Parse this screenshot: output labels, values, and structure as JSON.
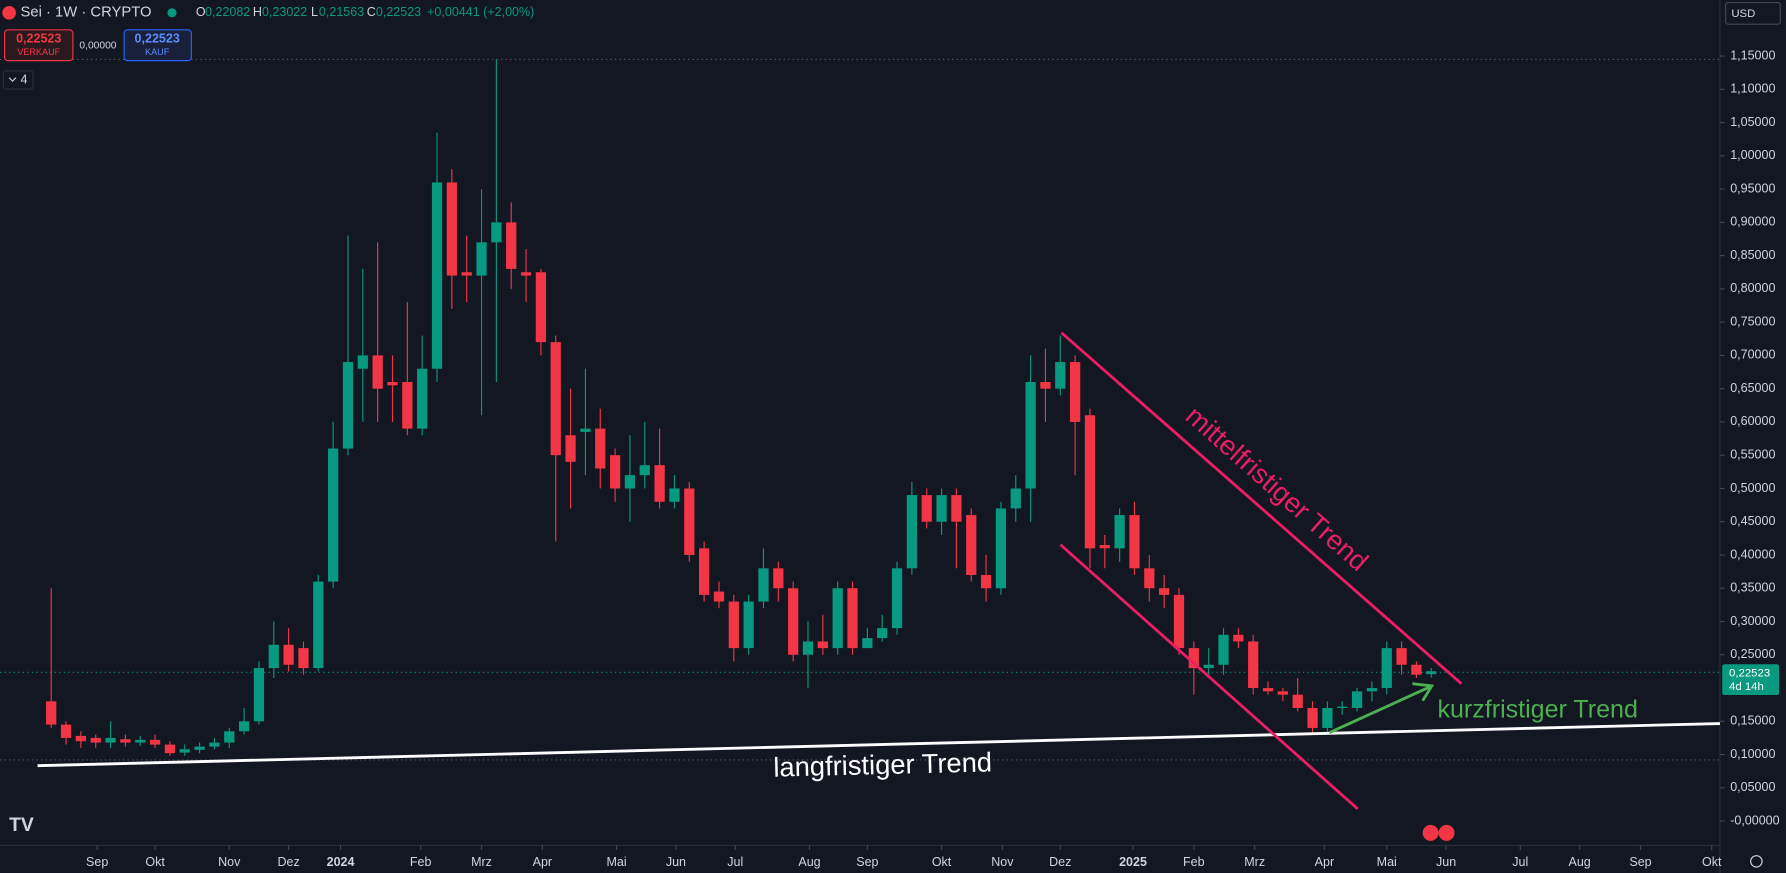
{
  "ui": {
    "symbol": "Sei · 1W · CRYPTO",
    "o_label": "O",
    "o_value": "0,22082",
    "h_label": "H",
    "h_value": "0,23022",
    "l_label": "L",
    "l_value": "0,21563",
    "c_label": "C",
    "c_value": "0,22523",
    "change": "+0,00441 (+2,00%)",
    "sell_price": "0,22523",
    "sell_label": "VERKAUF",
    "spread": "0,00000",
    "buy_price": "0,22523",
    "buy_label": "KAUF",
    "indicator_count": "4",
    "currency": "USD",
    "price_tag": "0,22523",
    "countdown": "4d 14h"
  },
  "chart_data": {
    "type": "candlestick",
    "annotations": [
      "langfristiger Trend",
      "mittelfristiger Trend",
      "kurzfristiger Trend"
    ],
    "up_color": "#089981",
    "down_color": "#f23645",
    "open": [
      0.18,
      0.145,
      0.128,
      0.125,
      0.118,
      0.123,
      0.118,
      0.122,
      0.115,
      0.103,
      0.107,
      0.112,
      0.118,
      0.135,
      0.15,
      0.23,
      0.265,
      0.26,
      0.23,
      0.36,
      0.56,
      0.68,
      0.7,
      0.66,
      0.66,
      0.59,
      0.68,
      0.96,
      0.825,
      0.82,
      0.87,
      0.9,
      0.825,
      0.825,
      0.72,
      0.58,
      0.585,
      0.59,
      0.55,
      0.5,
      0.52,
      0.535,
      0.48,
      0.5,
      0.41,
      0.345,
      0.33,
      0.26,
      0.33,
      0.38,
      0.35,
      0.25,
      0.27,
      0.26,
      0.35,
      0.26,
      0.275,
      0.29,
      0.38,
      0.49,
      0.45,
      0.49,
      0.46,
      0.37,
      0.35,
      0.47,
      0.5,
      0.66,
      0.65,
      0.69,
      0.61,
      0.415,
      0.41,
      0.46,
      0.38,
      0.35,
      0.34,
      0.26,
      0.23,
      0.235,
      0.28,
      0.27,
      0.2,
      0.195,
      0.19,
      0.17,
      0.14,
      0.17,
      0.17,
      0.195,
      0.2,
      0.26,
      0.235,
      0.22082
    ],
    "high": [
      0.35,
      0.15,
      0.135,
      0.13,
      0.15,
      0.13,
      0.128,
      0.13,
      0.12,
      0.115,
      0.118,
      0.125,
      0.14,
      0.17,
      0.24,
      0.3,
      0.29,
      0.27,
      0.37,
      0.6,
      0.88,
      0.83,
      0.87,
      0.7,
      0.78,
      0.73,
      1.035,
      0.98,
      0.88,
      0.95,
      1.145,
      0.93,
      0.86,
      0.83,
      0.73,
      0.65,
      0.68,
      0.62,
      0.56,
      0.58,
      0.6,
      0.59,
      0.52,
      0.51,
      0.42,
      0.36,
      0.34,
      0.34,
      0.41,
      0.39,
      0.36,
      0.3,
      0.31,
      0.36,
      0.36,
      0.29,
      0.31,
      0.39,
      0.51,
      0.5,
      0.5,
      0.5,
      0.47,
      0.4,
      0.48,
      0.52,
      0.7,
      0.71,
      0.73,
      0.7,
      0.62,
      0.43,
      0.47,
      0.48,
      0.4,
      0.37,
      0.35,
      0.27,
      0.26,
      0.29,
      0.29,
      0.28,
      0.21,
      0.2,
      0.215,
      0.18,
      0.18,
      0.18,
      0.2,
      0.21,
      0.27,
      0.27,
      0.24,
      0.23022
    ],
    "low": [
      0.14,
      0.115,
      0.11,
      0.11,
      0.11,
      0.112,
      0.113,
      0.11,
      0.098,
      0.098,
      0.102,
      0.108,
      0.11,
      0.13,
      0.145,
      0.215,
      0.225,
      0.22,
      0.225,
      0.35,
      0.55,
      0.6,
      0.6,
      0.6,
      0.58,
      0.58,
      0.66,
      0.77,
      0.78,
      0.61,
      0.66,
      0.8,
      0.78,
      0.7,
      0.42,
      0.47,
      0.52,
      0.5,
      0.48,
      0.45,
      0.5,
      0.47,
      0.47,
      0.39,
      0.33,
      0.32,
      0.24,
      0.25,
      0.32,
      0.33,
      0.24,
      0.2,
      0.25,
      0.25,
      0.25,
      0.26,
      0.27,
      0.28,
      0.37,
      0.44,
      0.43,
      0.38,
      0.36,
      0.33,
      0.34,
      0.45,
      0.45,
      0.6,
      0.64,
      0.52,
      0.38,
      0.38,
      0.39,
      0.37,
      0.33,
      0.32,
      0.25,
      0.19,
      0.22,
      0.22,
      0.26,
      0.19,
      0.19,
      0.18,
      0.165,
      0.13,
      0.13,
      0.16,
      0.165,
      0.18,
      0.19,
      0.22,
      0.215,
      0.21563
    ],
    "close": [
      0.145,
      0.125,
      0.12,
      0.118,
      0.125,
      0.118,
      0.122,
      0.115,
      0.102,
      0.108,
      0.112,
      0.118,
      0.135,
      0.15,
      0.23,
      0.265,
      0.235,
      0.23,
      0.36,
      0.56,
      0.69,
      0.7,
      0.65,
      0.655,
      0.59,
      0.68,
      0.96,
      0.82,
      0.82,
      0.87,
      0.9,
      0.83,
      0.82,
      0.72,
      0.55,
      0.54,
      0.59,
      0.53,
      0.5,
      0.52,
      0.535,
      0.48,
      0.5,
      0.4,
      0.34,
      0.33,
      0.26,
      0.33,
      0.38,
      0.35,
      0.25,
      0.27,
      0.26,
      0.35,
      0.26,
      0.275,
      0.29,
      0.38,
      0.49,
      0.45,
      0.49,
      0.45,
      0.37,
      0.35,
      0.47,
      0.5,
      0.66,
      0.65,
      0.69,
      0.6,
      0.41,
      0.41,
      0.46,
      0.38,
      0.35,
      0.34,
      0.26,
      0.23,
      0.235,
      0.28,
      0.27,
      0.2,
      0.195,
      0.19,
      0.17,
      0.14,
      0.17,
      0.172,
      0.195,
      0.2,
      0.26,
      0.235,
      0.22,
      0.22523
    ],
    "xlim": [
      -3.45,
      112.3
    ],
    "xticks": [
      {
        "value": 3.1,
        "label": "Sep"
      },
      {
        "value": 7.0,
        "label": "Okt"
      },
      {
        "value": 12.0,
        "label": "Nov"
      },
      {
        "value": 16.0,
        "label": "Dez"
      },
      {
        "value": 19.5,
        "label": "2024"
      },
      {
        "value": 24.9,
        "label": "Feb"
      },
      {
        "value": 29.0,
        "label": "Mrz"
      },
      {
        "value": 33.1,
        "label": "Apr"
      },
      {
        "value": 38.1,
        "label": "Mai"
      },
      {
        "value": 42.1,
        "label": "Jun"
      },
      {
        "value": 46.1,
        "label": "Jul"
      },
      {
        "value": 51.1,
        "label": "Aug"
      },
      {
        "value": 55.0,
        "label": "Sep"
      },
      {
        "value": 60.0,
        "label": "Okt"
      },
      {
        "value": 64.1,
        "label": "Nov"
      },
      {
        "value": 68.0,
        "label": "Dez"
      },
      {
        "value": 72.9,
        "label": "2025"
      },
      {
        "value": 77.0,
        "label": "Feb"
      },
      {
        "value": 81.1,
        "label": "Mrz"
      },
      {
        "value": 85.8,
        "label": "Apr"
      },
      {
        "value": 90.0,
        "label": "Mai"
      },
      {
        "value": 94.0,
        "label": "Jun"
      },
      {
        "value": 99.0,
        "label": "Jul"
      },
      {
        "value": 103.0,
        "label": "Aug"
      },
      {
        "value": 107.1,
        "label": "Sep"
      },
      {
        "value": 111.9,
        "label": "Okt"
      }
    ],
    "ylim": [
      -0.0366,
      1.2339
    ],
    "yticks": [
      {
        "value": 1.15,
        "label": "1,15000"
      },
      {
        "value": 1.1,
        "label": "1,10000"
      },
      {
        "value": 1.05,
        "label": "1,05000"
      },
      {
        "value": 1.0,
        "label": "1,00000"
      },
      {
        "value": 0.95,
        "label": "0,95000"
      },
      {
        "value": 0.9,
        "label": "0,90000"
      },
      {
        "value": 0.85,
        "label": "0,85000"
      },
      {
        "value": 0.8,
        "label": "0,80000"
      },
      {
        "value": 0.75,
        "label": "0,75000"
      },
      {
        "value": 0.7,
        "label": "0,70000"
      },
      {
        "value": 0.65,
        "label": "0,65000"
      },
      {
        "value": 0.6,
        "label": "0,60000"
      },
      {
        "value": 0.55,
        "label": "0,55000"
      },
      {
        "value": 0.5,
        "label": "0,50000"
      },
      {
        "value": 0.45,
        "label": "0,45000"
      },
      {
        "value": 0.4,
        "label": "0,40000"
      },
      {
        "value": 0.35,
        "label": "0,35000"
      },
      {
        "value": 0.3,
        "label": "0,30000"
      },
      {
        "value": 0.25,
        "label": "0,25000"
      },
      {
        "value": 0.15,
        "label": "0,15000"
      },
      {
        "value": 0.1,
        "label": "0,10000"
      },
      {
        "value": 0.05,
        "label": "0,05000"
      },
      {
        "value": 0,
        "label": "-0,00000"
      }
    ],
    "grid": false
  }
}
